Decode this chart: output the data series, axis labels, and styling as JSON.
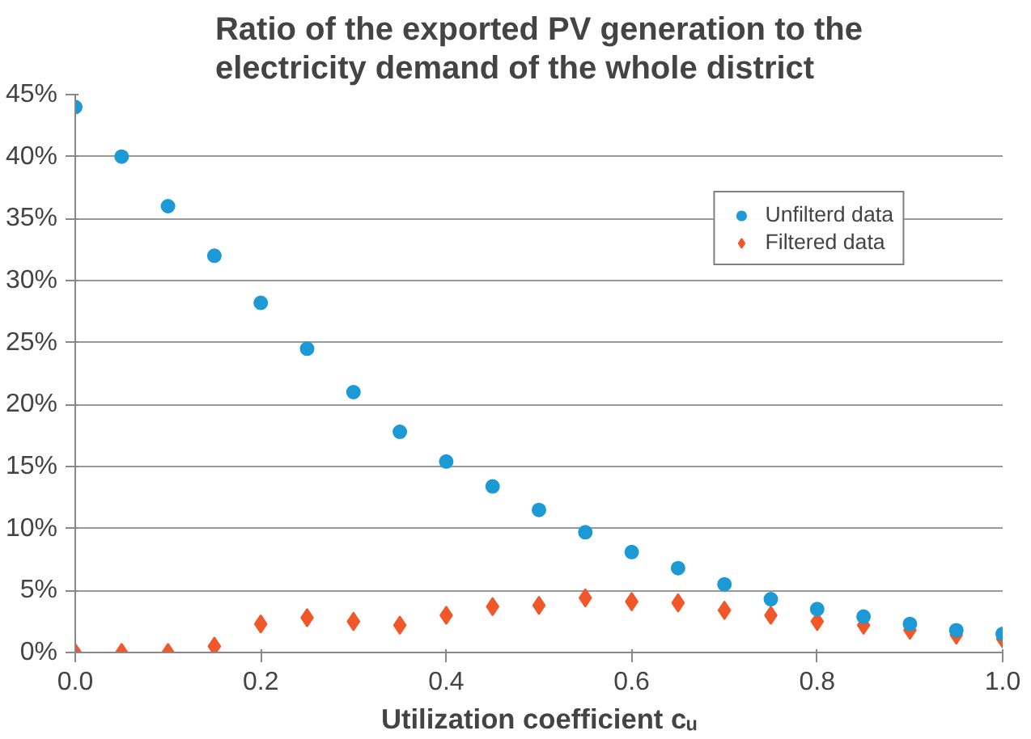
{
  "chart_data": {
    "type": "scatter",
    "title": "Ratio of the exported PV generation to the electricity demand of the whole district",
    "xlabel": "Utilization coefficient cᵤ",
    "x": [
      0,
      0.05,
      0.1,
      0.15,
      0.2,
      0.25,
      0.3,
      0.35,
      0.4,
      0.45,
      0.5,
      0.55,
      0.6,
      0.65,
      0.7,
      0.75,
      0.8,
      0.85,
      0.9,
      0.95,
      1.0
    ],
    "series": [
      {
        "name": "Unfilterd data",
        "color": "#1b9ad6",
        "marker": "circle",
        "values": [
          44,
          40,
          36,
          32,
          28.2,
          24.5,
          21,
          17.8,
          15.4,
          13.4,
          11.5,
          9.7,
          8.1,
          6.8,
          5.5,
          4.3,
          3.5,
          2.9,
          2.3,
          1.8,
          1.5
        ]
      },
      {
        "name": "Filtered data",
        "color": "#f0582a",
        "marker": "diamond",
        "values": [
          0,
          0,
          0,
          0.5,
          2.3,
          2.8,
          2.5,
          2.2,
          3.0,
          3.7,
          3.8,
          4.4,
          4.1,
          4.0,
          3.4,
          3.0,
          2.5,
          2.2,
          1.8,
          1.4,
          1.1
        ]
      }
    ],
    "xlim": [
      0,
      1
    ],
    "xticks": [
      {
        "value": 0,
        "label": "0.0"
      },
      {
        "value": 0.2,
        "label": "0.2"
      },
      {
        "value": 0.4,
        "label": "0.4"
      },
      {
        "value": 0.6,
        "label": "0.6"
      },
      {
        "value": 0.8,
        "label": "0.8"
      },
      {
        "value": 1,
        "label": "1.0"
      }
    ],
    "ylim": [
      0,
      45
    ],
    "yticks": [
      {
        "value": 0,
        "label": "0%"
      },
      {
        "value": 5,
        "label": "5%"
      },
      {
        "value": 10,
        "label": "10%"
      },
      {
        "value": 15,
        "label": "15%"
      },
      {
        "value": 20,
        "label": "20%"
      },
      {
        "value": 25,
        "label": "25%"
      },
      {
        "value": 30,
        "label": "30%"
      },
      {
        "value": 35,
        "label": "35%"
      },
      {
        "value": 40,
        "label": "40%"
      },
      {
        "value": 45,
        "label": "45%"
      }
    ],
    "grid": "y",
    "legend": "top right"
  }
}
